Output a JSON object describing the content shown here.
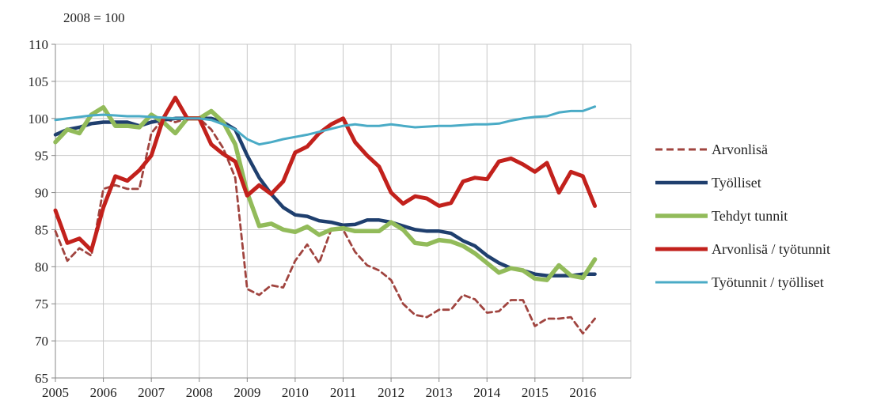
{
  "chart_data": {
    "type": "line",
    "unit_note": "2008 = 100",
    "ylim": [
      65,
      110
    ],
    "yticks": [
      65,
      70,
      75,
      80,
      85,
      90,
      95,
      100,
      105,
      110
    ],
    "xlim": [
      2005,
      2017
    ],
    "xticks": [
      2005,
      2006,
      2007,
      2008,
      2009,
      2010,
      2011,
      2012,
      2013,
      2014,
      2015,
      2016
    ],
    "grid": true,
    "legend_position": "right",
    "x": [
      2005.0,
      2005.25,
      2005.5,
      2005.75,
      2006.0,
      2006.25,
      2006.5,
      2006.75,
      2007.0,
      2007.25,
      2007.5,
      2007.75,
      2008.0,
      2008.25,
      2008.5,
      2008.75,
      2009.0,
      2009.25,
      2009.5,
      2009.75,
      2010.0,
      2010.25,
      2010.5,
      2010.75,
      2011.0,
      2011.25,
      2011.5,
      2011.75,
      2012.0,
      2012.25,
      2012.5,
      2012.75,
      2013.0,
      2013.25,
      2013.5,
      2013.75,
      2014.0,
      2014.25,
      2014.5,
      2014.75,
      2015.0,
      2015.25,
      2015.5,
      2015.75,
      2016.0,
      2016.25
    ],
    "series": [
      {
        "name": "Arvonlisä",
        "color": "#a0443f",
        "style": "dashed",
        "values": [
          84.8,
          80.8,
          82.5,
          81.5,
          90.5,
          91.0,
          90.5,
          90.5,
          98.0,
          100.0,
          99.5,
          100.0,
          100.0,
          98.5,
          96.0,
          92.0,
          77.0,
          76.2,
          77.5,
          77.2,
          80.8,
          83.0,
          80.5,
          85.0,
          85.0,
          82.0,
          80.2,
          79.5,
          78.2,
          75.0,
          73.5,
          73.2,
          74.2,
          74.2,
          76.2,
          75.6,
          73.8,
          74.0,
          75.5,
          75.5,
          72.0,
          73.0,
          73.0,
          73.2,
          71.0,
          73.0
        ]
      },
      {
        "name": "Työlliset",
        "color": "#1f3f6e",
        "style": "solid",
        "values": [
          97.8,
          98.5,
          98.8,
          99.3,
          99.5,
          99.5,
          99.5,
          99.0,
          99.5,
          99.8,
          100.0,
          100.0,
          100.0,
          100.0,
          99.5,
          98.5,
          95.0,
          92.0,
          89.8,
          88.0,
          87.0,
          86.8,
          86.2,
          86.0,
          85.6,
          85.7,
          86.3,
          86.3,
          86.0,
          85.5,
          85.0,
          84.8,
          84.8,
          84.5,
          83.5,
          82.8,
          81.5,
          80.5,
          79.8,
          79.5,
          79.0,
          78.8,
          78.8,
          78.8,
          79.0,
          79.0
        ]
      },
      {
        "name": "Tehdyt tunnit",
        "color": "#92bb5a",
        "style": "solid",
        "values": [
          96.8,
          98.5,
          98.0,
          100.5,
          101.5,
          99.0,
          99.0,
          98.8,
          100.5,
          99.5,
          98.0,
          100.0,
          100.0,
          101.0,
          99.5,
          96.5,
          90.0,
          85.5,
          85.8,
          85.0,
          84.7,
          85.4,
          84.3,
          85.0,
          85.2,
          84.8,
          84.8,
          84.8,
          86.0,
          85.0,
          83.2,
          83.0,
          83.6,
          83.4,
          82.8,
          81.8,
          80.5,
          79.2,
          79.8,
          79.5,
          78.4,
          78.2,
          80.2,
          78.8,
          78.5,
          81.0
        ]
      },
      {
        "name": "Arvonlisä / työtunnit",
        "color": "#c2211c",
        "style": "solid",
        "values": [
          87.6,
          83.2,
          83.8,
          82.2,
          88.0,
          92.2,
          91.6,
          93.0,
          95.0,
          100.0,
          102.8,
          100.0,
          100.0,
          96.5,
          95.2,
          94.2,
          89.6,
          91.0,
          89.8,
          91.5,
          95.4,
          96.2,
          98.0,
          99.2,
          100.0,
          96.8,
          95.0,
          93.5,
          90.0,
          88.5,
          89.5,
          89.2,
          88.2,
          88.6,
          91.5,
          92.0,
          91.8,
          94.2,
          94.6,
          93.8,
          92.8,
          94.0,
          90.0,
          92.8,
          92.2,
          88.2
        ]
      },
      {
        "name": "Työtunnit / työlliset",
        "color": "#4aabc6",
        "style": "solid",
        "values": [
          99.8,
          100.0,
          100.2,
          100.4,
          100.5,
          100.4,
          100.3,
          100.3,
          100.2,
          100.1,
          100.0,
          100.0,
          100.0,
          99.8,
          99.2,
          98.5,
          97.2,
          96.5,
          96.8,
          97.2,
          97.5,
          97.8,
          98.2,
          98.6,
          99.0,
          99.2,
          99.0,
          99.0,
          99.2,
          99.0,
          98.8,
          98.9,
          99.0,
          99.0,
          99.1,
          99.2,
          99.2,
          99.3,
          99.7,
          100.0,
          100.2,
          100.3,
          100.8,
          101.0,
          101.0,
          101.6
        ]
      }
    ]
  }
}
